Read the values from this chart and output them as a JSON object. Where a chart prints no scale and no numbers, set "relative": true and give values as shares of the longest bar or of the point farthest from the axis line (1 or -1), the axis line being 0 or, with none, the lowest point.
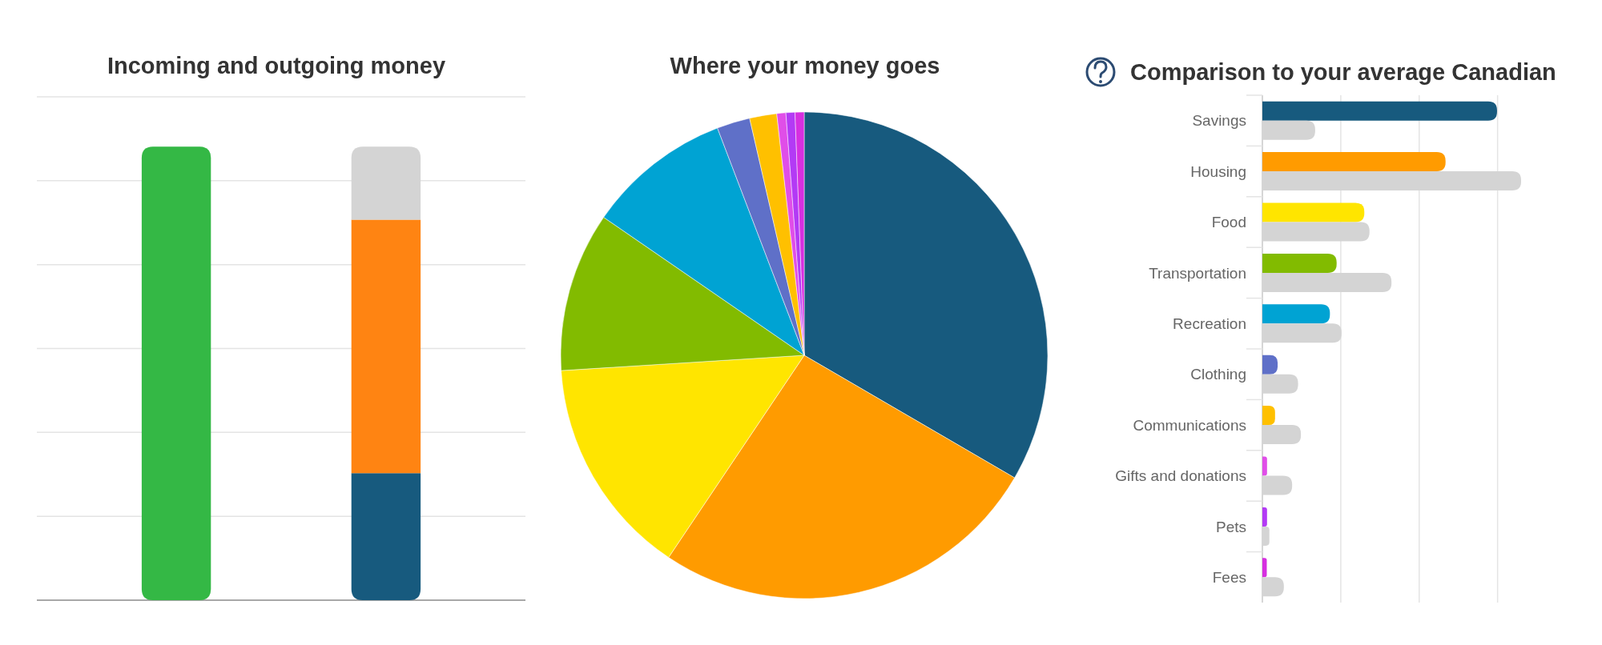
{
  "chart_data": [
    {
      "type": "bar",
      "title": "Incoming and outgoing money",
      "categories": [
        null,
        null
      ],
      "stacked": true,
      "relative": true,
      "grid": "y",
      "series": [
        {
          "colors": [
            "#34b845",
            "#175a7e"
          ],
          "values": [
            1,
            0.28
          ]
        },
        {
          "color": "#ff8412",
          "values": [
            null,
            0.559
          ]
        },
        {
          "color": "#d4d4d4",
          "values": [
            null,
            0.161
          ]
        }
      ]
    },
    {
      "type": "pie",
      "title": "Where your money goes",
      "categories": [
        null,
        null,
        null,
        null,
        null,
        null,
        null,
        null,
        null,
        null
      ],
      "values": [
        33.4,
        26.0,
        14.6,
        10.6,
        9.6,
        2.2,
        1.8,
        0.6,
        0.6,
        0.6
      ],
      "colors": [
        "#175a7e",
        "#ff9b00",
        "#ffe500",
        "#82bb00",
        "#00a3d3",
        "#5f70c8",
        "#ffc000",
        "#e04ee8",
        "#b33af5",
        "#d62fe0"
      ]
    },
    {
      "type": "bar",
      "orientation": "horizontal",
      "title": "Comparison to your average Canadian",
      "relative": true,
      "grid": "x",
      "categories": [
        "Savings",
        "Housing",
        "Food",
        "Transportation",
        "Recreation",
        "Clothing",
        "Communications",
        "Gifts and donations",
        "Pets",
        "Fees"
      ],
      "series": [
        {
          "colors": [
            "#175a7e",
            "#ff9b00",
            "#ffe500",
            "#82bb00",
            "#00a3d3",
            "#5f70c8",
            "#ffc000",
            "#e04ee8",
            "#b33af5",
            "#d62fe0"
          ],
          "values": [
            0.907,
            0.708,
            0.394,
            0.287,
            0.261,
            0.059,
            0.049,
            0.018,
            0.018,
            0.017
          ]
        },
        {
          "color": "#d4d4d4",
          "values": [
            0.204,
            1,
            0.414,
            0.499,
            0.306,
            0.138,
            0.149,
            0.115,
            0.027,
            0.083
          ]
        }
      ]
    }
  ]
}
